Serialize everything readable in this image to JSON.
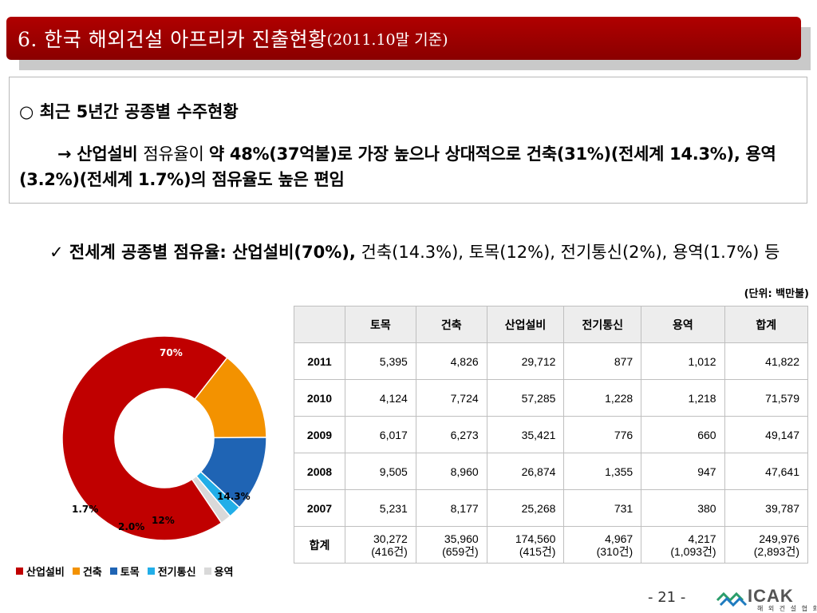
{
  "title": {
    "main": "6. 한국 해외건설 아프리카 진출현황",
    "sub": "(2011.10말 기준)"
  },
  "summary": {
    "heading": "○ 최근 5년간 공종별 수주현황",
    "body_pre": "→ 산업설비 ",
    "body_normal": "점유율이 ",
    "body_post": "약 48%(37억불)로 가장 높으나 상대적으로 건축(31%)(전세계 14.3%), 용역 (3.2%)(전세계 1.7%)의 점유율도 높은 편임"
  },
  "worldwide": {
    "bold": "✓ 전세계 공종별 점유율: 산업설비(70%),",
    "rest": " 건축(14.3%), 토목(12%), 전기통신(2%), 용역(1.7%) 등"
  },
  "unit_label": "(단위: 백만불)",
  "table": {
    "headers": [
      "",
      "토목",
      "건축",
      "산업설비",
      "전기통신",
      "용역",
      "합계"
    ],
    "rows": [
      [
        "2011",
        "5,395",
        "4,826",
        "29,712",
        "877",
        "1,012",
        "41,822"
      ],
      [
        "2010",
        "4,124",
        "7,724",
        "57,285",
        "1,228",
        "1,218",
        "71,579"
      ],
      [
        "2009",
        "6,017",
        "6,273",
        "35,421",
        "776",
        "660",
        "49,147"
      ],
      [
        "2008",
        "9,505",
        "8,960",
        "26,874",
        "1,355",
        "947",
        "47,641"
      ],
      [
        "2007",
        "5,231",
        "8,177",
        "25,268",
        "731",
        "380",
        "39,787"
      ]
    ],
    "total": {
      "label": "합계",
      "cells": [
        [
          "30,272",
          "(416건)"
        ],
        [
          "35,960",
          "(659건)"
        ],
        [
          "174,560",
          "(415건)"
        ],
        [
          "4,967",
          "(310건)"
        ],
        [
          "4,217",
          "(1,093건)"
        ],
        [
          "249,976",
          "(2,893건)"
        ]
      ]
    }
  },
  "chart_data": {
    "type": "pie",
    "donut": true,
    "categories": [
      "산업설비",
      "건축",
      "토목",
      "전기통신",
      "용역"
    ],
    "values": [
      70,
      14.3,
      12,
      2.0,
      1.7
    ],
    "labels": [
      "70%",
      "14.3%",
      "12%",
      "2.0%",
      "1.7%"
    ],
    "colors": [
      "#c00000",
      "#f39200",
      "#1f64b4",
      "#22aee8",
      "#d9d9d9"
    ],
    "legend_position": "bottom"
  },
  "page_number": "- 21 -",
  "logo": {
    "text": "ICAK",
    "sub": "해 외 건 설 협 회"
  }
}
